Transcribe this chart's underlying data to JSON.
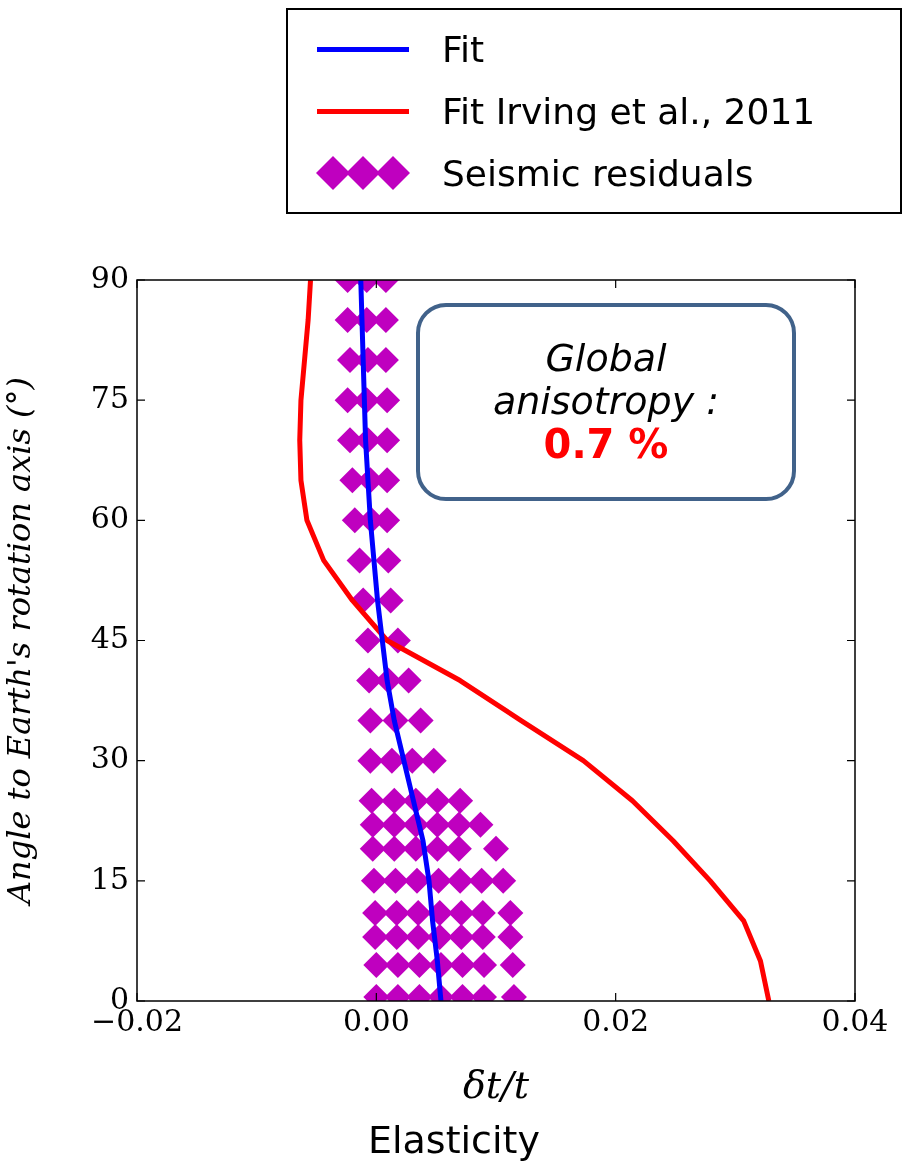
{
  "chart_data": {
    "type": "scatter",
    "xlabel": "δt/t",
    "ylabel": "Angle to Earth's rotation axis (°)",
    "annotations": [
      "Global anisotropy :",
      "0.7 %",
      "Elasticity"
    ],
    "xlim": [
      -0.02,
      0.04
    ],
    "xticks": [
      {
        "value": -0.02,
        "label": "−0.02"
      },
      {
        "value": 0,
        "label": "0.00"
      },
      {
        "value": 0.02,
        "label": "0.02"
      },
      {
        "value": 0.04,
        "label": "0.04"
      }
    ],
    "ylim": [
      0,
      90
    ],
    "yticks": [
      0,
      15,
      30,
      45,
      60,
      75,
      90
    ],
    "grid": false,
    "legend": "top",
    "series": [
      {
        "name": "Fit",
        "type": "line",
        "color": "#0000ff",
        "x": [
          0.0054,
          0.0051,
          0.0047,
          0.0044,
          0.0039,
          0.0031,
          0.0023,
          0.0015,
          0.0009,
          0.0005,
          0.0001,
          -0.0002,
          -0.0005,
          -0.0007,
          -0.0009,
          -0.001,
          -0.0011,
          -0.0012,
          -0.0013
        ],
        "values": [
          0,
          5,
          10,
          15,
          20,
          25,
          30,
          35,
          40,
          45,
          50,
          55,
          60,
          65,
          70,
          75,
          80,
          85,
          90
        ]
      },
      {
        "name": "Fit Irving et al., 2011",
        "type": "line",
        "color": "#ff0000",
        "x": [
          0.0328,
          0.0321,
          0.0307,
          0.0279,
          0.0248,
          0.0214,
          0.0173,
          0.0121,
          0.007,
          0.0009,
          -0.002,
          -0.0044,
          -0.0058,
          -0.0063,
          -0.0064,
          -0.0063,
          -0.006,
          -0.0057,
          -0.0055
        ],
        "values": [
          0,
          5,
          10,
          15,
          20,
          25,
          30,
          35,
          40,
          45,
          50,
          55,
          60,
          65,
          70,
          75,
          80,
          85,
          90
        ]
      },
      {
        "name": "Seismic residuals",
        "type": "scatter",
        "marker": "diamond",
        "color": "#bf00bf",
        "x": [
          -0.0024,
          -0.0008,
          0.0008,
          -0.0024,
          -0.0008,
          0.0008,
          -0.0022,
          -0.0007,
          0.0008,
          -0.0024,
          -0.0008,
          0.0009,
          -0.0022,
          -0.0007,
          0.0009,
          -0.002,
          -0.0005,
          0.0009,
          -0.0018,
          -0.0004,
          0.0009,
          -0.0014,
          0.001,
          -0.0011,
          0.0012,
          -0.0007,
          0.0018,
          -0.0006,
          0.001,
          0.0027,
          -0.0005,
          0.0016,
          0.0037,
          -0.0005,
          0.0013,
          0.003,
          0.0048,
          -0.0004,
          0.0015,
          0.0033,
          0.0051,
          0.007,
          -0.0003,
          0.0015,
          0.0033,
          0.0051,
          0.0069,
          0.0087,
          -0.0003,
          0.0015,
          0.0033,
          0.0051,
          0.0069,
          0.01,
          -0.0002,
          0.0016,
          0.0034,
          0.0052,
          0.007,
          0.0088,
          0.0106,
          -0.0001,
          0.0017,
          0.0035,
          0.0053,
          0.0071,
          0.0089,
          0.0112,
          -0.0001,
          0.0017,
          0.0035,
          0.0053,
          0.0071,
          0.0089,
          0.0112,
          0,
          0.0018,
          0.0036,
          0.0054,
          0.0072,
          0.009,
          0.0114,
          0,
          0.0018,
          0.0036,
          0.0054,
          0.0072,
          0.009,
          0.0115
        ],
        "values": [
          90,
          90,
          90,
          85,
          85,
          85,
          80,
          80,
          80,
          75,
          75,
          75,
          70,
          70,
          70,
          65,
          65,
          65,
          60,
          60,
          60,
          55,
          55,
          50,
          50,
          45,
          45,
          40,
          40,
          40,
          35,
          35,
          35,
          30,
          30,
          30,
          30,
          25,
          25,
          25,
          25,
          25,
          22,
          22,
          22,
          22,
          22,
          22,
          19,
          19,
          19,
          19,
          19,
          19,
          15,
          15,
          15,
          15,
          15,
          15,
          15,
          11,
          11,
          11,
          11,
          11,
          11,
          11,
          8,
          8,
          8,
          8,
          8,
          8,
          8,
          4.5,
          4.5,
          4.5,
          4.5,
          4.5,
          4.5,
          4.5,
          0.5,
          0.5,
          0.5,
          0.5,
          0.5,
          0.5,
          0.5
        ]
      }
    ]
  }
}
